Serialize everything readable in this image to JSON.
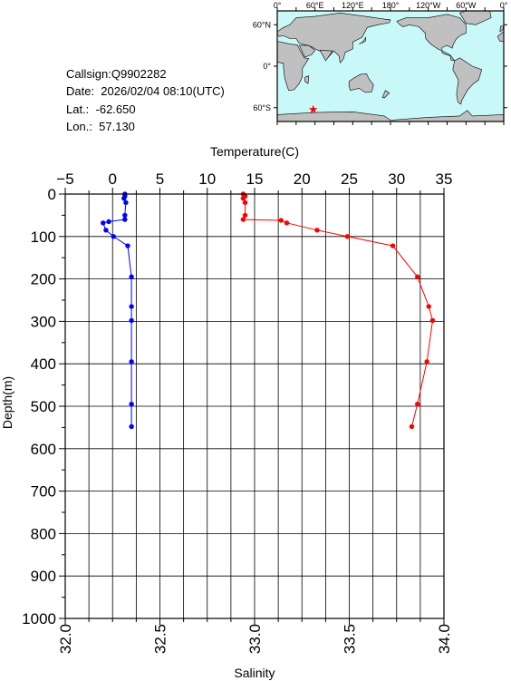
{
  "info": {
    "callsign": "Callsign:Q9902282",
    "date": "Date:  2026/02/04 08:10(UTC)",
    "lat": "Lat.:  -62.650",
    "lon": "Lon.:  57.130"
  },
  "map": {
    "lon_labels": [
      "0°",
      "60°E",
      "120°E",
      "180°",
      "120°W",
      "60°W",
      "0°"
    ],
    "lat_labels": [
      "60°N",
      "0°",
      "60°S"
    ],
    "ocean_color": "#c8f8f8",
    "land_color": "#c0c0c0",
    "station": {
      "lon": 57.13,
      "lat": -62.65,
      "marker": "star",
      "color": "#ff0000"
    }
  },
  "chart_data": {
    "type": "line",
    "xlabel_top": "Temperature(C)",
    "xlabel_bottom": "Salinity",
    "ylabel": "Depth(m)",
    "temperature_axis": {
      "range": [
        -5,
        35
      ],
      "ticks": [
        -5,
        0,
        5,
        10,
        15,
        20,
        25,
        30,
        35
      ]
    },
    "salinity_axis": {
      "range": [
        32.0,
        34.0
      ],
      "ticks": [
        "32.0",
        "32.5",
        "33.0",
        "33.5",
        "34.0"
      ]
    },
    "depth_axis": {
      "range": [
        0,
        1000
      ],
      "inverted": true,
      "ticks": [
        0,
        100,
        200,
        300,
        400,
        500,
        600,
        700,
        800,
        900,
        1000
      ]
    },
    "grid": true,
    "series": [
      {
        "quantity": "temperature",
        "color": "#0000ff",
        "points": [
          [
            1.3,
            0
          ],
          [
            1.3,
            5
          ],
          [
            1.2,
            10
          ],
          [
            1.4,
            20
          ],
          [
            1.3,
            50
          ],
          [
            1.3,
            60
          ],
          [
            -0.4,
            65
          ],
          [
            -1.0,
            68
          ],
          [
            -0.7,
            85
          ],
          [
            0.1,
            100
          ],
          [
            1.6,
            122
          ],
          [
            2.0,
            195
          ],
          [
            2.0,
            265
          ],
          [
            2.0,
            298
          ],
          [
            2.0,
            395
          ],
          [
            2.0,
            495
          ],
          [
            2.0,
            548
          ]
        ]
      },
      {
        "quantity": "salinity",
        "color": "#ff0000",
        "points": [
          [
            32.94,
            0
          ],
          [
            32.95,
            5
          ],
          [
            32.94,
            10
          ],
          [
            32.95,
            20
          ],
          [
            32.95,
            50
          ],
          [
            32.94,
            60
          ],
          [
            33.14,
            62
          ],
          [
            33.17,
            68
          ],
          [
            33.33,
            85
          ],
          [
            33.49,
            100
          ],
          [
            33.73,
            122
          ],
          [
            33.86,
            195
          ],
          [
            33.92,
            265
          ],
          [
            33.94,
            298
          ],
          [
            33.91,
            395
          ],
          [
            33.86,
            495
          ],
          [
            33.83,
            548
          ]
        ]
      }
    ]
  }
}
